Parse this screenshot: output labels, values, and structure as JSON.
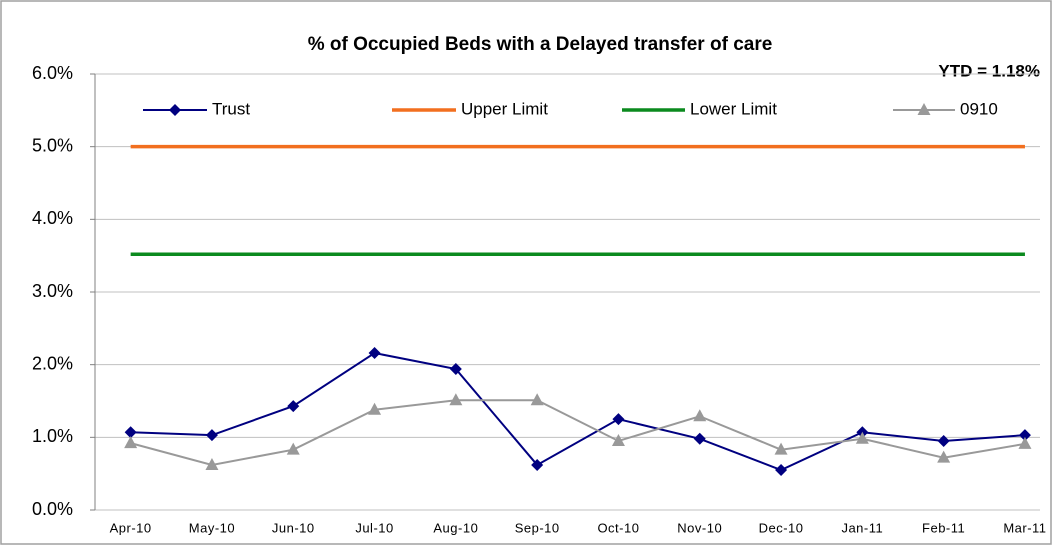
{
  "chart_data": {
    "type": "line",
    "title": "% of Occupied Beds with a Delayed transfer of care",
    "annotation": "YTD = 1.18%",
    "categories": [
      "Apr-10",
      "May-10",
      "Jun-10",
      "Jul-10",
      "Aug-10",
      "Sep-10",
      "Oct-10",
      "Nov-10",
      "Dec-10",
      "Jan-11",
      "Feb-11",
      "Mar-11"
    ],
    "series": [
      {
        "name": "Trust",
        "color": "#000080",
        "marker": "diamond",
        "values": [
          1.07,
          1.03,
          1.43,
          2.16,
          1.94,
          0.62,
          1.25,
          0.98,
          0.55,
          1.07,
          0.95,
          1.03
        ]
      },
      {
        "name": "Upper Limit",
        "color": "#f26f1f",
        "marker": "none",
        "values": [
          5.0,
          5.0,
          5.0,
          5.0,
          5.0,
          5.0,
          5.0,
          5.0,
          5.0,
          5.0,
          5.0,
          5.0
        ]
      },
      {
        "name": "Lower Limit",
        "color": "#0b8a1e",
        "marker": "none",
        "values": [
          3.52,
          3.52,
          3.52,
          3.52,
          3.52,
          3.52,
          3.52,
          3.52,
          3.52,
          3.52,
          3.52,
          3.52
        ]
      },
      {
        "name": "0910",
        "color": "#999999",
        "marker": "triangle",
        "values": [
          0.92,
          0.62,
          0.83,
          1.38,
          1.51,
          1.51,
          0.95,
          1.29,
          0.83,
          0.98,
          0.72,
          0.91
        ]
      }
    ],
    "ylim": [
      0,
      6
    ],
    "yticks": [
      {
        "value": 0,
        "label": "0.0%"
      },
      {
        "value": 1,
        "label": "1.0%"
      },
      {
        "value": 2,
        "label": "2.0%"
      },
      {
        "value": 3,
        "label": "3.0%"
      },
      {
        "value": 4,
        "label": "4.0%"
      },
      {
        "value": 5,
        "label": "5.0%"
      },
      {
        "value": 6,
        "label": "6.0%"
      }
    ],
    "grid": true,
    "legend": "top"
  }
}
